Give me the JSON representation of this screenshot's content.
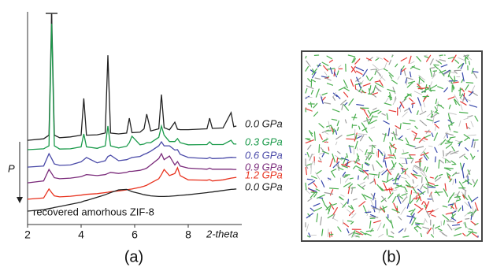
{
  "chart_data": {
    "type": "line",
    "x": [
      2.0,
      2.6,
      2.8,
      2.9,
      3.0,
      3.2,
      3.6,
      4.0,
      4.1,
      4.2,
      4.6,
      4.9,
      5.0,
      5.1,
      5.4,
      5.7,
      5.8,
      5.9,
      6.2,
      6.35,
      6.45,
      6.6,
      6.9,
      7.0,
      7.1,
      7.3,
      7.5,
      7.6,
      7.7,
      8.0,
      8.7,
      8.8,
      8.9,
      9.3,
      9.6,
      9.7,
      9.8
    ],
    "series": [
      {
        "name": "0.0 GPa",
        "color": "#222222",
        "values": [
          39.6,
          40.3,
          42,
          98.9,
          42,
          40.8,
          41.2,
          42,
          59.3,
          42,
          42.2,
          43,
          79.6,
          43,
          42.6,
          43,
          50,
          43.2,
          43.4,
          45,
          51.9,
          44,
          45,
          61.1,
          45.5,
          44.5,
          48.1,
          44.8,
          44.6,
          44.6,
          45,
          50,
          45.2,
          45.4,
          52.6,
          46,
          46.3
        ]
      },
      {
        "name": "0.3 GPa",
        "color": "#1a9a4a",
        "values": [
          35.2,
          35.6,
          37,
          94.4,
          37,
          35.5,
          35.6,
          36.5,
          42.6,
          36.5,
          35.8,
          37,
          46.3,
          37,
          36,
          36.8,
          38.5,
          41.5,
          37.5,
          37.8,
          38.5,
          38.5,
          41,
          46.3,
          42,
          39,
          39,
          40.4,
          38.5,
          37.5,
          37.6,
          38.9,
          37.6,
          37.6,
          39.6,
          37.9,
          37.8
        ]
      },
      {
        "name": "0.6 GPa",
        "color": "#4a4aa8",
        "values": [
          27,
          27.5,
          33.3,
          31,
          28.5,
          27.8,
          28,
          29.5,
          30.5,
          31.5,
          29,
          30,
          32,
          32.6,
          30,
          30.5,
          31,
          31.5,
          32,
          33,
          33.5,
          34.5,
          37,
          38.9,
          37,
          37,
          35,
          35.2,
          33,
          31.5,
          31,
          31.5,
          31,
          31.2,
          31.6,
          31.5,
          31.5
        ]
      },
      {
        "name": "0.9 GPa",
        "color": "#7a2a7a",
        "values": [
          19.6,
          20.5,
          25.9,
          24,
          22,
          21.5,
          21.8,
          22.5,
          23,
          23.5,
          23,
          23.5,
          24,
          24.5,
          24,
          24.5,
          25,
          25,
          25.5,
          26,
          26.5,
          28,
          31,
          33.3,
          30.5,
          32.2,
          28,
          29.6,
          27.5,
          26.5,
          26,
          26.5,
          26,
          26,
          26,
          25.9,
          25.9
        ]
      },
      {
        "name": "1.2 GPa",
        "color": "#e8321e",
        "values": [
          11.9,
          12.5,
          16.7,
          15,
          13.5,
          13,
          13.3,
          13.8,
          14,
          14.2,
          14.5,
          15,
          15.2,
          15.4,
          15.8,
          16.3,
          16.5,
          16.7,
          17.5,
          18,
          18.5,
          19.5,
          21.5,
          23.5,
          25.9,
          23,
          24,
          26.7,
          23,
          21,
          20.8,
          21.1,
          20.5,
          21,
          21.8,
          22,
          22.2
        ]
      },
      {
        "name": "0.0 GPa",
        "color": "#222222",
        "values": [
          6.3,
          7,
          7.5,
          7.7,
          8,
          8.5,
          9.5,
          10.5,
          11,
          11.3,
          12.8,
          14,
          14.5,
          15,
          16.3,
          16.5,
          16,
          15.5,
          14.5,
          14,
          13.8,
          13.5,
          13.2,
          13.2,
          13.2,
          13.3,
          13.5,
          13.6,
          13.7,
          14,
          15,
          15.2,
          15.3,
          16,
          16.5,
          16.6,
          16.7
        ]
      }
    ],
    "xlim": [
      2,
      10
    ],
    "xticks": [
      2,
      4,
      6,
      8
    ],
    "xlabel": "2-theta",
    "ylim": [
      0,
      100
    ],
    "arrow_label": "P",
    "annotation": "recovered amorhous ZIF-8"
  },
  "panel_labels": [
    "(a)",
    "(b)"
  ]
}
